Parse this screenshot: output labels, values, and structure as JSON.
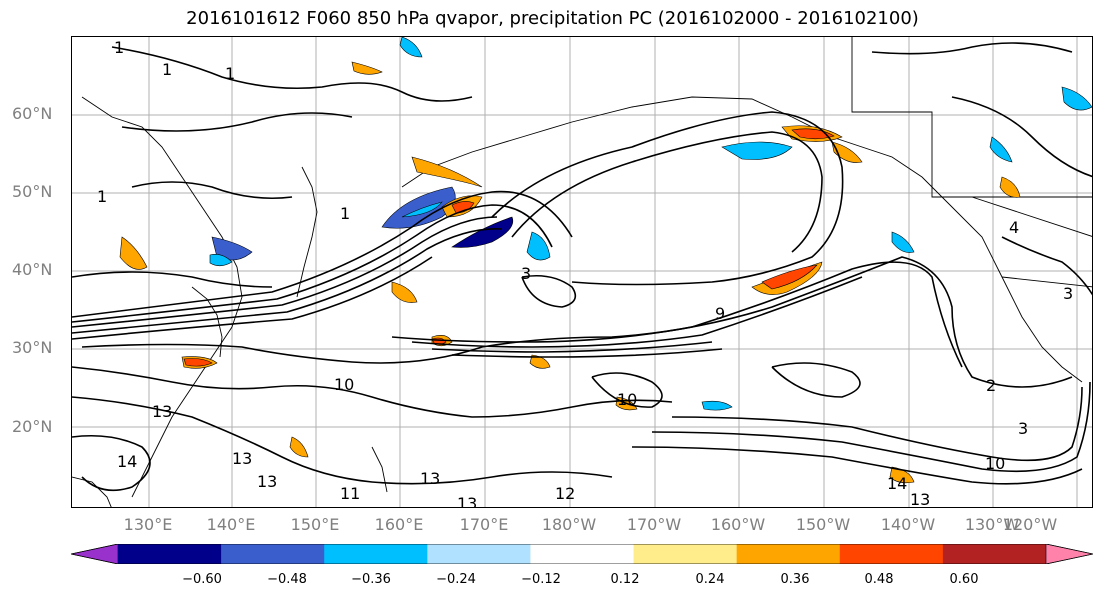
{
  "title": "2016101612 F060 850 hPa qvapor, precipitation PC (2016102000 - 2016102100)",
  "lat_labels": [
    "60°N",
    "50°N",
    "40°N",
    "30°N",
    "20°N"
  ],
  "lon_labels": [
    "130°E",
    "140°E",
    "150°E",
    "160°E",
    "170°E",
    "180°W",
    "170°W",
    "160°W",
    "150°W",
    "140°W",
    "130°W",
    "120°W"
  ],
  "contour_labels": [
    "1",
    "1",
    "1",
    "1",
    "1",
    "4",
    "3",
    "3",
    "10",
    "10",
    "13",
    "13",
    "13",
    "13",
    "12",
    "13",
    "14",
    "13",
    "10",
    "2",
    "3",
    "9",
    "14",
    "11"
  ],
  "colorbar": {
    "ticks": [
      "−0.60",
      "−0.48",
      "−0.36",
      "−0.24",
      "−0.12",
      "0.12",
      "0.24",
      "0.36",
      "0.48",
      "0.60"
    ],
    "colors": [
      "#9932CC",
      "#00008B",
      "#3A5FCD",
      "#00BFFF",
      "#B0E2FF",
      "#FFFFFF",
      "#FFEC8B",
      "#FFA500",
      "#FF4500",
      "#B22222",
      "#FF82AB"
    ]
  }
}
